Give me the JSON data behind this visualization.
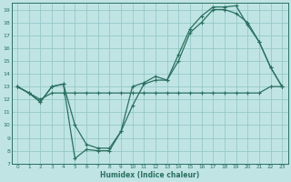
{
  "xlabel": "Humidex (Indice chaleur)",
  "bg_color": "#c0e4e4",
  "grid_color": "#96c8c8",
  "line_color": "#2a7060",
  "xlim": [
    -0.5,
    23.5
  ],
  "ylim": [
    7,
    19.5
  ],
  "xticks": [
    0,
    1,
    2,
    3,
    4,
    5,
    6,
    7,
    8,
    9,
    10,
    11,
    12,
    13,
    14,
    15,
    16,
    17,
    18,
    19,
    20,
    21,
    22,
    23
  ],
  "yticks": [
    7,
    8,
    9,
    10,
    11,
    12,
    13,
    14,
    15,
    16,
    17,
    18,
    19
  ],
  "line1_x": [
    0,
    1,
    2,
    3,
    4,
    5,
    6,
    7,
    8,
    9,
    10,
    11,
    12,
    13,
    14,
    15,
    16,
    17,
    18,
    19,
    20,
    21,
    22,
    23
  ],
  "line1_y": [
    13,
    12.5,
    12.0,
    12.5,
    12.5,
    12.5,
    12.5,
    12.5,
    12.5,
    12.5,
    12.5,
    12.5,
    12.5,
    12.5,
    12.5,
    12.5,
    12.5,
    12.5,
    12.5,
    12.5,
    12.5,
    12.5,
    13.0,
    13.0
  ],
  "line2_x": [
    0,
    1,
    2,
    3,
    4,
    5,
    6,
    7,
    8,
    9,
    10,
    11,
    12,
    13,
    14,
    15,
    16,
    17,
    18,
    19,
    20,
    21,
    22,
    23
  ],
  "line2_y": [
    13,
    12.5,
    11.8,
    13.0,
    13.2,
    10.0,
    8.5,
    8.2,
    8.2,
    9.5,
    11.5,
    13.2,
    13.5,
    13.5,
    15.0,
    17.2,
    18.0,
    19.0,
    19.0,
    18.7,
    18.0,
    16.5,
    14.5,
    13.0
  ],
  "line3_x": [
    0,
    1,
    2,
    3,
    4,
    5,
    6,
    7,
    8,
    9,
    10,
    11,
    12,
    13,
    14,
    15,
    16,
    17,
    18,
    19,
    20,
    21,
    22,
    23
  ],
  "line3_y": [
    13,
    12.5,
    11.8,
    13.0,
    13.2,
    7.4,
    8.1,
    8.0,
    8.0,
    9.5,
    13.0,
    13.3,
    13.8,
    13.5,
    15.5,
    17.5,
    18.5,
    19.2,
    19.2,
    19.3,
    17.8,
    16.5,
    14.5,
    13.0
  ],
  "marker": "+",
  "markersize": 3,
  "linewidth": 0.9
}
